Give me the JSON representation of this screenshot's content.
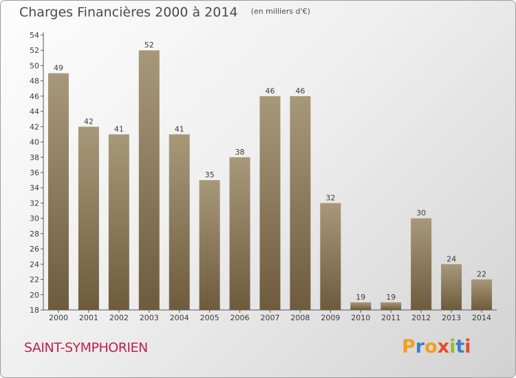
{
  "header": {
    "title": "Charges Financières 2000 à 2014",
    "subtitle": "(en milliers d'€)"
  },
  "footer": {
    "commune": "SAINT-SYMPHORIEN",
    "brand": "Proxiti"
  },
  "colors": {
    "bar_light": "#a8987a",
    "bar_dark": "#6e5b3e",
    "commune_text": "#c0204a",
    "axis_text": "#3a3a3a",
    "brand_letters": [
      "#f29f1a",
      "#3b7fc4",
      "#f29f1a",
      "#e8492b",
      "#8fbf2a",
      "#3b7fc4",
      "#e8492b"
    ]
  },
  "chart_data": {
    "type": "bar",
    "title": "Charges Financières 2000 à 2014",
    "subtitle": "(en milliers d'€)",
    "categories": [
      "2000",
      "2001",
      "2002",
      "2003",
      "2004",
      "2005",
      "2006",
      "2007",
      "2008",
      "2009",
      "2010",
      "2011",
      "2012",
      "2013",
      "2014"
    ],
    "values": [
      49,
      42,
      41,
      52,
      41,
      35,
      38,
      46,
      46,
      32,
      19,
      19,
      30,
      24,
      22
    ],
    "data_labels": [
      "49",
      "42",
      "41",
      "52",
      "41",
      "35",
      "38",
      "46",
      "46",
      "32",
      "19",
      "19",
      "30",
      "24",
      "22"
    ],
    "ylim": [
      18,
      54
    ],
    "yticks": [
      "18",
      "20",
      "22",
      "24",
      "26",
      "28",
      "30",
      "32",
      "34",
      "36",
      "38",
      "40",
      "42",
      "44",
      "46",
      "48",
      "50",
      "52",
      "54"
    ],
    "grid": false,
    "legend": "none"
  }
}
